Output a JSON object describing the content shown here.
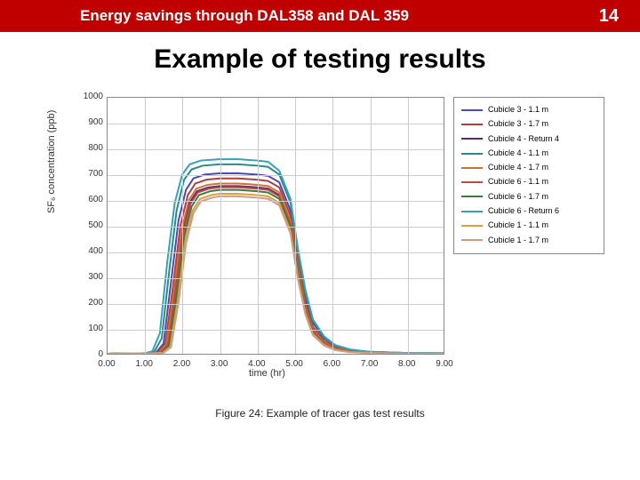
{
  "header": {
    "title": "Energy savings through DAL358 and DAL 359",
    "page": "14"
  },
  "subtitle": "Example of testing results",
  "chart": {
    "type": "line",
    "xlabel": "time (hr)",
    "ylabel": "SF₆ concentration (ppb)",
    "xlim": [
      0,
      9
    ],
    "ylim": [
      0,
      1000
    ],
    "xticks": [
      "0.00",
      "1.00",
      "2.00",
      "3.00",
      "4.00",
      "5.00",
      "6.00",
      "7.00",
      "8.00",
      "9.00"
    ],
    "yticks": [
      "0",
      "100",
      "200",
      "300",
      "400",
      "500",
      "600",
      "700",
      "800",
      "900",
      "1000"
    ],
    "grid_color": "#cccccc",
    "border_color": "#888888",
    "background_color": "#ffffff",
    "legend_position": "right",
    "line_width": 2,
    "caption": "Figure 24: Example of tracer gas test results",
    "series": [
      {
        "name": "Cubicle 3 - 1.1 m",
        "color": "#4a4ab0",
        "points": [
          [
            0,
            0
          ],
          [
            1.1,
            2
          ],
          [
            1.3,
            5
          ],
          [
            1.5,
            40
          ],
          [
            1.7,
            280
          ],
          [
            1.9,
            520
          ],
          [
            2.1,
            640
          ],
          [
            2.3,
            685
          ],
          [
            2.6,
            700
          ],
          [
            3.0,
            705
          ],
          [
            3.5,
            705
          ],
          [
            4.0,
            700
          ],
          [
            4.3,
            695
          ],
          [
            4.6,
            670
          ],
          [
            4.9,
            560
          ],
          [
            5.1,
            380
          ],
          [
            5.3,
            220
          ],
          [
            5.5,
            120
          ],
          [
            5.8,
            60
          ],
          [
            6.1,
            30
          ],
          [
            6.5,
            15
          ],
          [
            7.0,
            8
          ],
          [
            8.0,
            3
          ],
          [
            9.0,
            2
          ]
        ]
      },
      {
        "name": "Cubicle 3 - 1.7 m",
        "color": "#b04040",
        "points": [
          [
            0,
            0
          ],
          [
            1.1,
            2
          ],
          [
            1.35,
            5
          ],
          [
            1.55,
            40
          ],
          [
            1.75,
            260
          ],
          [
            1.95,
            500
          ],
          [
            2.15,
            620
          ],
          [
            2.35,
            665
          ],
          [
            2.65,
            680
          ],
          [
            3.0,
            685
          ],
          [
            3.5,
            685
          ],
          [
            4.0,
            680
          ],
          [
            4.3,
            675
          ],
          [
            4.6,
            650
          ],
          [
            4.9,
            540
          ],
          [
            5.1,
            360
          ],
          [
            5.3,
            200
          ],
          [
            5.5,
            105
          ],
          [
            5.8,
            50
          ],
          [
            6.1,
            25
          ],
          [
            6.5,
            12
          ],
          [
            7.0,
            6
          ],
          [
            8.0,
            2
          ],
          [
            9.0,
            1
          ]
        ]
      },
      {
        "name": "Cubicle 4 - Return 4",
        "color": "#5a2a70",
        "points": [
          [
            0,
            0
          ],
          [
            1.15,
            2
          ],
          [
            1.4,
            5
          ],
          [
            1.6,
            35
          ],
          [
            1.8,
            240
          ],
          [
            2.0,
            470
          ],
          [
            2.2,
            590
          ],
          [
            2.4,
            635
          ],
          [
            2.7,
            650
          ],
          [
            3.0,
            655
          ],
          [
            3.5,
            655
          ],
          [
            4.0,
            650
          ],
          [
            4.3,
            645
          ],
          [
            4.6,
            620
          ],
          [
            4.9,
            510
          ],
          [
            5.1,
            330
          ],
          [
            5.3,
            180
          ],
          [
            5.5,
            90
          ],
          [
            5.8,
            42
          ],
          [
            6.1,
            20
          ],
          [
            6.5,
            10
          ],
          [
            7.0,
            5
          ],
          [
            8.0,
            2
          ],
          [
            9.0,
            1
          ]
        ]
      },
      {
        "name": "Cubicle 4 - 1.1 m",
        "color": "#2a8a8a",
        "points": [
          [
            0,
            0
          ],
          [
            1.05,
            2
          ],
          [
            1.25,
            8
          ],
          [
            1.45,
            60
          ],
          [
            1.65,
            320
          ],
          [
            1.85,
            560
          ],
          [
            2.05,
            680
          ],
          [
            2.25,
            720
          ],
          [
            2.55,
            735
          ],
          [
            3.0,
            740
          ],
          [
            3.5,
            740
          ],
          [
            4.0,
            735
          ],
          [
            4.3,
            730
          ],
          [
            4.6,
            700
          ],
          [
            4.9,
            590
          ],
          [
            5.1,
            400
          ],
          [
            5.3,
            240
          ],
          [
            5.5,
            130
          ],
          [
            5.8,
            65
          ],
          [
            6.1,
            32
          ],
          [
            6.5,
            16
          ],
          [
            7.0,
            8
          ],
          [
            8.0,
            3
          ],
          [
            9.0,
            2
          ]
        ]
      },
      {
        "name": "Cubicle 4 - 1.7 m",
        "color": "#d07030",
        "points": [
          [
            0,
            0
          ],
          [
            1.12,
            2
          ],
          [
            1.38,
            5
          ],
          [
            1.58,
            38
          ],
          [
            1.78,
            250
          ],
          [
            1.98,
            480
          ],
          [
            2.18,
            600
          ],
          [
            2.38,
            645
          ],
          [
            2.68,
            660
          ],
          [
            3.0,
            665
          ],
          [
            3.5,
            665
          ],
          [
            4.0,
            660
          ],
          [
            4.3,
            655
          ],
          [
            4.6,
            630
          ],
          [
            4.9,
            520
          ],
          [
            5.1,
            340
          ],
          [
            5.3,
            185
          ],
          [
            5.5,
            95
          ],
          [
            5.8,
            45
          ],
          [
            6.1,
            22
          ],
          [
            6.5,
            11
          ],
          [
            7.0,
            5
          ],
          [
            8.0,
            2
          ],
          [
            9.0,
            1
          ]
        ]
      },
      {
        "name": "Cubicle 6 - 1.1 m",
        "color": "#c04a4a",
        "points": [
          [
            0,
            0
          ],
          [
            1.15,
            2
          ],
          [
            1.42,
            5
          ],
          [
            1.62,
            35
          ],
          [
            1.82,
            235
          ],
          [
            2.02,
            465
          ],
          [
            2.22,
            585
          ],
          [
            2.42,
            630
          ],
          [
            2.72,
            645
          ],
          [
            3.0,
            650
          ],
          [
            3.5,
            650
          ],
          [
            4.0,
            645
          ],
          [
            4.3,
            640
          ],
          [
            4.6,
            615
          ],
          [
            4.9,
            505
          ],
          [
            5.1,
            325
          ],
          [
            5.3,
            175
          ],
          [
            5.5,
            88
          ],
          [
            5.8,
            40
          ],
          [
            6.1,
            19
          ],
          [
            6.5,
            9
          ],
          [
            7.0,
            4
          ],
          [
            8.0,
            2
          ],
          [
            9.0,
            1
          ]
        ]
      },
      {
        "name": "Cubicle 6 - 1.7 m",
        "color": "#3a7a3a",
        "points": [
          [
            0,
            0
          ],
          [
            1.18,
            2
          ],
          [
            1.45,
            5
          ],
          [
            1.65,
            32
          ],
          [
            1.85,
            225
          ],
          [
            2.05,
            455
          ],
          [
            2.25,
            575
          ],
          [
            2.45,
            620
          ],
          [
            2.75,
            635
          ],
          [
            3.0,
            640
          ],
          [
            3.5,
            640
          ],
          [
            4.0,
            635
          ],
          [
            4.3,
            630
          ],
          [
            4.6,
            605
          ],
          [
            4.9,
            495
          ],
          [
            5.1,
            315
          ],
          [
            5.3,
            168
          ],
          [
            5.5,
            82
          ],
          [
            5.8,
            37
          ],
          [
            6.1,
            17
          ],
          [
            6.5,
            8
          ],
          [
            7.0,
            4
          ],
          [
            8.0,
            1
          ],
          [
            9.0,
            1
          ]
        ]
      },
      {
        "name": "Cubicle 6 - Return 6",
        "color": "#3aa0b5",
        "points": [
          [
            0,
            0
          ],
          [
            1.0,
            2
          ],
          [
            1.2,
            10
          ],
          [
            1.4,
            80
          ],
          [
            1.6,
            360
          ],
          [
            1.8,
            590
          ],
          [
            2.0,
            700
          ],
          [
            2.2,
            740
          ],
          [
            2.5,
            755
          ],
          [
            3.0,
            760
          ],
          [
            3.5,
            760
          ],
          [
            4.0,
            755
          ],
          [
            4.3,
            750
          ],
          [
            4.6,
            715
          ],
          [
            4.9,
            605
          ],
          [
            5.1,
            410
          ],
          [
            5.3,
            250
          ],
          [
            5.5,
            135
          ],
          [
            5.8,
            68
          ],
          [
            6.1,
            34
          ],
          [
            6.5,
            17
          ],
          [
            7.0,
            8
          ],
          [
            8.0,
            3
          ],
          [
            9.0,
            2
          ]
        ]
      },
      {
        "name": "Cubicle 1 - 1.1 m",
        "color": "#d8a040",
        "points": [
          [
            0,
            0
          ],
          [
            1.2,
            2
          ],
          [
            1.48,
            4
          ],
          [
            1.68,
            28
          ],
          [
            1.88,
            210
          ],
          [
            2.08,
            440
          ],
          [
            2.28,
            560
          ],
          [
            2.48,
            605
          ],
          [
            2.78,
            620
          ],
          [
            3.0,
            625
          ],
          [
            3.5,
            625
          ],
          [
            4.0,
            620
          ],
          [
            4.3,
            615
          ],
          [
            4.6,
            590
          ],
          [
            4.9,
            480
          ],
          [
            5.1,
            300
          ],
          [
            5.3,
            160
          ],
          [
            5.5,
            78
          ],
          [
            5.8,
            35
          ],
          [
            6.1,
            16
          ],
          [
            6.5,
            7
          ],
          [
            7.0,
            3
          ],
          [
            8.0,
            1
          ],
          [
            9.0,
            1
          ]
        ]
      },
      {
        "name": "Cubicle 1 - 1.7 m",
        "color": "#d49a80",
        "points": [
          [
            0,
            0
          ],
          [
            1.22,
            2
          ],
          [
            1.5,
            4
          ],
          [
            1.7,
            26
          ],
          [
            1.9,
            200
          ],
          [
            2.1,
            430
          ],
          [
            2.3,
            550
          ],
          [
            2.5,
            595
          ],
          [
            2.8,
            610
          ],
          [
            3.0,
            615
          ],
          [
            3.5,
            615
          ],
          [
            4.0,
            610
          ],
          [
            4.3,
            605
          ],
          [
            4.6,
            580
          ],
          [
            4.9,
            470
          ],
          [
            5.1,
            290
          ],
          [
            5.3,
            153
          ],
          [
            5.5,
            73
          ],
          [
            5.8,
            32
          ],
          [
            6.1,
            14
          ],
          [
            6.5,
            6
          ],
          [
            7.0,
            3
          ],
          [
            8.0,
            1
          ],
          [
            9.0,
            0
          ]
        ]
      }
    ]
  }
}
